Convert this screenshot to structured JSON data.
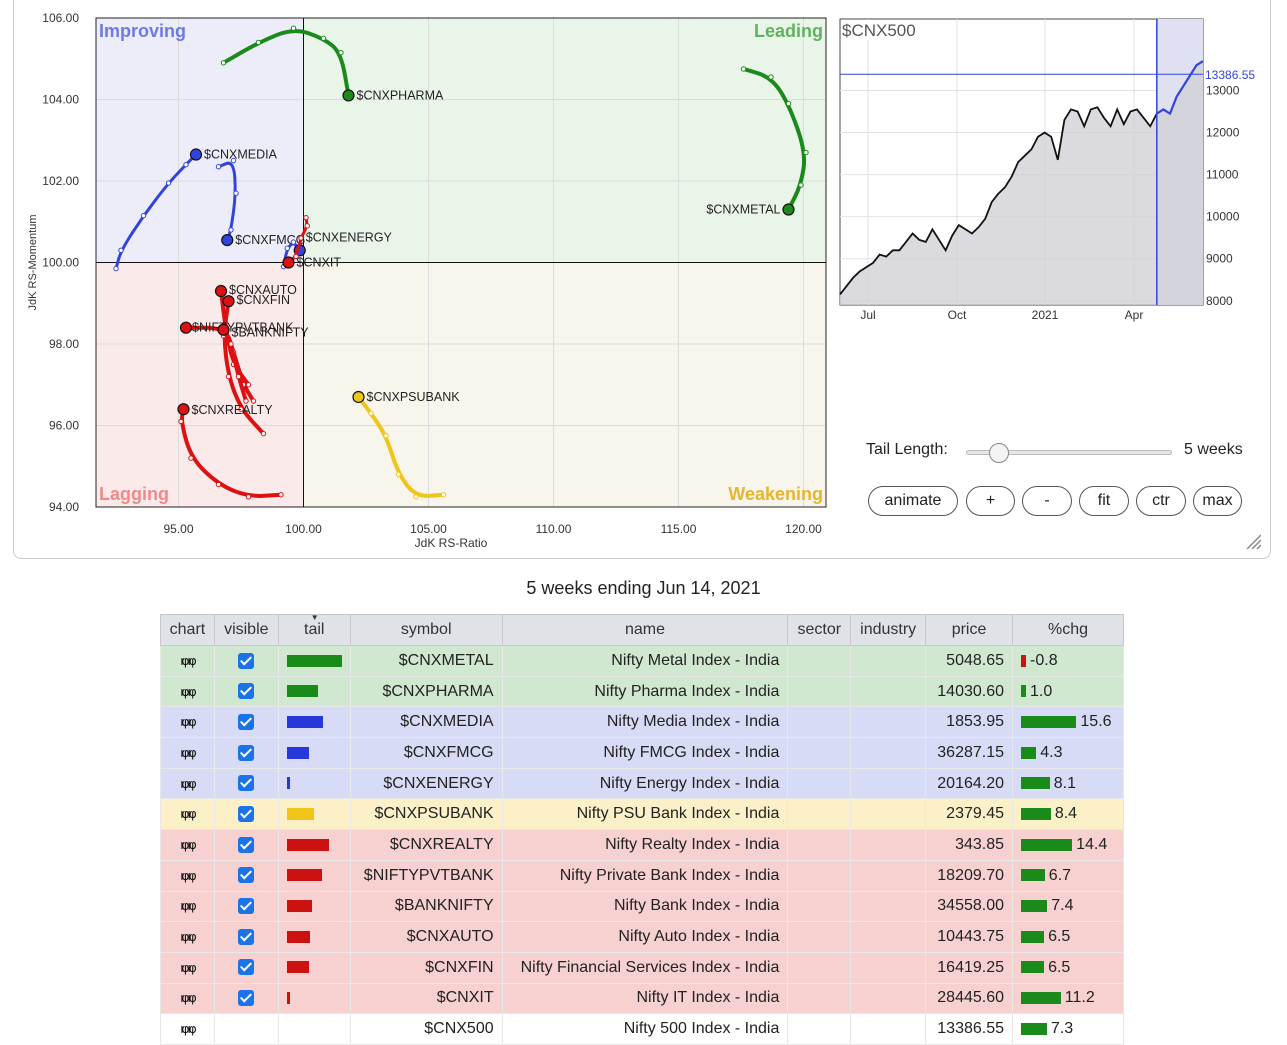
{
  "chart_data": [
    {
      "type": "scatter",
      "subtype": "relative-rotation-graph",
      "xlabel": "JdK RS-Ratio",
      "ylabel": "JdK RS-Momentum",
      "xlim": [
        91.7,
        120.9
      ],
      "ylim": [
        94.0,
        106.0
      ],
      "x_ticks": [
        95,
        100,
        105,
        110,
        115,
        120
      ],
      "x_tick_labels": [
        "95.00",
        "100.00",
        "105.00",
        "110.00",
        "115.00",
        "120.00"
      ],
      "y_ticks": [
        94,
        96,
        98,
        100,
        102,
        104,
        106
      ],
      "y_tick_labels": [
        "94.00",
        "96.00",
        "98.00",
        "100.00",
        "102.00",
        "104.00",
        "106.00"
      ],
      "center": [
        100,
        100
      ],
      "quadrants": [
        {
          "name": "Improving",
          "color": "#6f79e6",
          "bg": "#ededfa",
          "position": "top-left"
        },
        {
          "name": "Leading",
          "color": "#5fb35f",
          "bg": "#eaf5ea",
          "position": "top-right"
        },
        {
          "name": "Lagging",
          "color": "#ef8a8a",
          "bg": "#fbeaea",
          "position": "bottom-left"
        },
        {
          "name": "Weakening",
          "color": "#e7b52c",
          "bg": "#f8f6ec",
          "position": "bottom-right"
        }
      ],
      "series": [
        {
          "name": "$CNXPHARMA",
          "color": "#1a8a1a",
          "filled": true,
          "points": [
            [
              96.8,
              104.9
            ],
            [
              98.2,
              105.4
            ],
            [
              99.6,
              105.75
            ],
            [
              100.8,
              105.5
            ],
            [
              101.5,
              105.15
            ],
            [
              101.8,
              104.1
            ]
          ]
        },
        {
          "name": "$CNXMETAL",
          "color": "#1a8a1a",
          "filled": true,
          "points": [
            [
              117.6,
              104.75
            ],
            [
              118.7,
              104.55
            ],
            [
              119.4,
              103.9
            ],
            [
              120.1,
              102.7
            ],
            [
              119.9,
              101.9
            ],
            [
              119.4,
              101.3
            ]
          ]
        },
        {
          "name": "$CNXMEDIA",
          "color": "#3344dd",
          "filled": false,
          "points": [
            [
              92.5,
              99.85
            ],
            [
              92.7,
              100.3
            ],
            [
              93.6,
              101.15
            ],
            [
              94.6,
              101.95
            ],
            [
              95.3,
              102.4
            ],
            [
              95.7,
              102.65
            ]
          ]
        },
        {
          "name": "$CNXFMCG",
          "color": "#3344dd",
          "filled": false,
          "points": [
            [
              96.6,
              102.35
            ],
            [
              97.2,
              102.5
            ],
            [
              97.3,
              101.7
            ],
            [
              97.1,
              100.8
            ],
            [
              96.95,
              100.55
            ]
          ]
        },
        {
          "name": "$CNXENERGY",
          "color": "#3344dd",
          "filled": false,
          "points": [
            [
              99.2,
              99.9
            ],
            [
              99.35,
              100.35
            ],
            [
              99.6,
              100.5
            ],
            [
              99.85,
              100.3
            ]
          ]
        },
        {
          "name": "$CNXIT",
          "color": "#dd1111",
          "filled": false,
          "points": [
            [
              100.1,
              101.1
            ],
            [
              100.15,
              100.9
            ],
            [
              99.9,
              100.6
            ],
            [
              99.7,
              100.15
            ],
            [
              99.4,
              100.0
            ]
          ]
        },
        {
          "name": "$CNXAUTO",
          "color": "#dd1111",
          "filled": true,
          "points": [
            [
              97.8,
              97.0
            ],
            [
              97.2,
              97.5
            ],
            [
              96.9,
              98.3
            ],
            [
              96.7,
              99.3
            ]
          ]
        },
        {
          "name": "$CNXFIN",
          "color": "#dd1111",
          "filled": true,
          "points": [
            [
              98.4,
              95.8
            ],
            [
              97.5,
              96.4
            ],
            [
              97.0,
              97.2
            ],
            [
              96.8,
              98.2
            ],
            [
              97.0,
              99.05
            ]
          ]
        },
        {
          "name": "$NIFTYPVTBANK",
          "color": "#dd1111",
          "filled": true,
          "points": [
            [
              98.0,
              96.6
            ],
            [
              97.6,
              97.0
            ],
            [
              97.2,
              97.8
            ],
            [
              96.9,
              98.4
            ],
            [
              95.3,
              98.4
            ]
          ]
        },
        {
          "name": "$BANKNIFTY",
          "color": "#dd1111",
          "filled": true,
          "points": [
            [
              97.7,
              96.6
            ],
            [
              97.4,
              97.2
            ],
            [
              97.1,
              98.0
            ],
            [
              96.8,
              98.35
            ]
          ]
        },
        {
          "name": "$CNXREALTY",
          "color": "#dd1111",
          "filled": true,
          "points": [
            [
              99.1,
              94.3
            ],
            [
              97.8,
              94.25
            ],
            [
              96.6,
              94.55
            ],
            [
              95.5,
              95.2
            ],
            [
              95.1,
              96.1
            ],
            [
              95.2,
              96.4
            ]
          ]
        },
        {
          "name": "$CNXPSUBANK",
          "color": "#f0c419",
          "filled": true,
          "points": [
            [
              105.6,
              94.3
            ],
            [
              104.5,
              94.25
            ],
            [
              103.8,
              94.8
            ],
            [
              103.3,
              95.75
            ],
            [
              102.7,
              96.3
            ],
            [
              102.2,
              96.7
            ]
          ]
        }
      ],
      "labels": [
        {
          "text": "$CNXPHARMA"
        },
        {
          "text": "$CNXMETAL"
        },
        {
          "text": "$CNXMEDIA"
        },
        {
          "text": "$CNXFMCG"
        },
        {
          "text": "$CNXENERGY"
        },
        {
          "text": "$CNXIT"
        },
        {
          "text": "$CNXAUTO"
        },
        {
          "text": "$CNXFIN"
        },
        {
          "text": "$NIFTYPVTBANK"
        },
        {
          "text": "$BANKNIFTY"
        },
        {
          "text": "$CNXREALTY"
        },
        {
          "text": "$CNXPSUBANK"
        }
      ]
    },
    {
      "type": "area",
      "title": "$CNX500",
      "last_value_label": "13386.55",
      "x_tick_labels": [
        "Jul",
        "Oct",
        "2021",
        "Apr"
      ],
      "y_ticks": [
        8000,
        9000,
        10000,
        11000,
        12000,
        13000
      ],
      "y_tick_labels": [
        "8000",
        "9000",
        "10000",
        "11000",
        "12000",
        "13000"
      ],
      "ylim": [
        7900,
        14700
      ],
      "values": [
        8150,
        8350,
        8550,
        8700,
        8800,
        8900,
        9100,
        9050,
        9200,
        9200,
        9400,
        9600,
        9450,
        9400,
        9700,
        9450,
        9200,
        9550,
        9800,
        9700,
        9600,
        9750,
        9950,
        10350,
        10550,
        10700,
        10950,
        11300,
        11450,
        11600,
        11900,
        12000,
        11900,
        11350,
        12300,
        12550,
        12500,
        12150,
        12550,
        12600,
        12350,
        12150,
        12550,
        12200,
        12500,
        12550,
        12350,
        12150,
        12450,
        12550,
        12450,
        12850,
        13100,
        13350,
        13600,
        13700
      ],
      "highlight_from_index": 48,
      "last_value": 13386.55
    }
  ],
  "controls": {
    "tail_length_label": "Tail Length:",
    "tail_length_value": "5 weeks",
    "tail_length_weeks": 5,
    "buttons": {
      "animate": "animate",
      "plus": "+",
      "minus": "-",
      "fit": "fit",
      "ctr": "ctr",
      "max": "max"
    }
  },
  "caption": "5 weeks ending Jun 14, 2021",
  "table": {
    "headers": {
      "chart": "chart",
      "visible": "visible",
      "tail": "tail",
      "symbol": "symbol",
      "name": "name",
      "sector": "sector",
      "industry": "industry",
      "price": "price",
      "chg": "%chg"
    },
    "rows": [
      {
        "symbol": "$CNXMETAL",
        "name": "Nifty Metal Index - India",
        "price": "5048.65",
        "chg": "-0.8",
        "chg_value": -0.8,
        "tail": 5,
        "bg": "#cfe8cf",
        "tail_color": "#1a8a1a",
        "visible": true
      },
      {
        "symbol": "$CNXPHARMA",
        "name": "Nifty Pharma Index - India",
        "price": "14030.60",
        "chg": "1.0",
        "chg_value": 1.0,
        "tail": 2.8,
        "bg": "#cfe8cf",
        "tail_color": "#1a8a1a",
        "visible": true
      },
      {
        "symbol": "$CNXMEDIA",
        "name": "Nifty Media Index - India",
        "price": "1853.95",
        "chg": "15.6",
        "chg_value": 15.6,
        "tail": 3.3,
        "bg": "#d8dbf5",
        "tail_color": "#2838d8",
        "visible": true
      },
      {
        "symbol": "$CNXFMCG",
        "name": "Nifty FMCG Index - India",
        "price": "36287.15",
        "chg": "4.3",
        "chg_value": 4.3,
        "tail": 2.0,
        "bg": "#d8dbf5",
        "tail_color": "#2838d8",
        "visible": true
      },
      {
        "symbol": "$CNXENERGY",
        "name": "Nifty Energy Index - India",
        "price": "20164.20",
        "chg": "8.1",
        "chg_value": 8.1,
        "tail": 0.3,
        "bg": "#d8dbf5",
        "tail_color": "#2838d8",
        "visible": true
      },
      {
        "symbol": "$CNXPSUBANK",
        "name": "Nifty PSU Bank Index - India",
        "price": "2379.45",
        "chg": "8.4",
        "chg_value": 8.4,
        "tail": 2.5,
        "bg": "#fbf0c8",
        "tail_color": "#f0c419",
        "visible": true
      },
      {
        "symbol": "$CNXREALTY",
        "name": "Nifty Realty Index - India",
        "price": "343.85",
        "chg": "14.4",
        "chg_value": 14.4,
        "tail": 3.8,
        "bg": "#f7d0d0",
        "tail_color": "#cc1111",
        "visible": true
      },
      {
        "symbol": "$NIFTYPVTBANK",
        "name": "Nifty Private Bank Index - India",
        "price": "18209.70",
        "chg": "6.7",
        "chg_value": 6.7,
        "tail": 3.2,
        "bg": "#f7d0d0",
        "tail_color": "#cc1111",
        "visible": true
      },
      {
        "symbol": "$BANKNIFTY",
        "name": "Nifty Bank Index - India",
        "price": "34558.00",
        "chg": "7.4",
        "chg_value": 7.4,
        "tail": 2.3,
        "bg": "#f7d0d0",
        "tail_color": "#cc1111",
        "visible": true
      },
      {
        "symbol": "$CNXAUTO",
        "name": "Nifty Auto Index - India",
        "price": "10443.75",
        "chg": "6.5",
        "chg_value": 6.5,
        "tail": 2.1,
        "bg": "#f7d0d0",
        "tail_color": "#cc1111",
        "visible": true
      },
      {
        "symbol": "$CNXFIN",
        "name": "Nifty Financial Services Index - India",
        "price": "16419.25",
        "chg": "6.5",
        "chg_value": 6.5,
        "tail": 2.0,
        "bg": "#f7d0d0",
        "tail_color": "#cc1111",
        "visible": true
      },
      {
        "symbol": "$CNXIT",
        "name": "Nifty IT Index - India",
        "price": "28445.60",
        "chg": "11.2",
        "chg_value": 11.2,
        "tail": 0.3,
        "bg": "#f7d0d0",
        "tail_color": "#cc1111",
        "visible": true
      },
      {
        "symbol": "$CNX500",
        "name": "Nifty 500 Index - India",
        "price": "13386.55",
        "chg": "7.3",
        "chg_value": 7.3,
        "tail": 0,
        "bg": "#ffffff",
        "tail_color": "#ffffff",
        "visible": false
      }
    ]
  }
}
